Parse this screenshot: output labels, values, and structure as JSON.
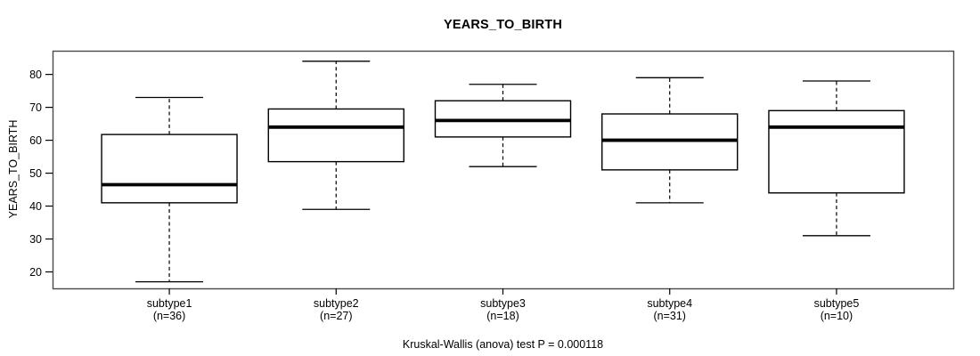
{
  "figure": {
    "background": "#ffffff",
    "line_color": "#000000",
    "frame_color": "#4a4a4a"
  },
  "chart_data": {
    "type": "boxplot",
    "title": "YEARS_TO_BIRTH",
    "ylabel": "YEARS_TO_BIRTH",
    "xlabel": "",
    "caption": "Kruskal-Wallis (anova) test P = 0.000118",
    "ylim": [
      15,
      87.2
    ],
    "yticks": [
      20,
      30,
      40,
      50,
      60,
      70,
      80
    ],
    "grid": false,
    "legend_position": "none",
    "categories": [
      "subtype1",
      "subtype2",
      "subtype3",
      "subtype4",
      "subtype5"
    ],
    "category_sublabels": [
      "(n=36)",
      "(n=27)",
      "(n=18)",
      "(n=31)",
      "(n=10)"
    ],
    "series": [
      {
        "name": "subtype1",
        "n": 36,
        "whisker_low": 17,
        "q1": 41,
        "median": 46.5,
        "q3": 61.75,
        "whisker_high": 73
      },
      {
        "name": "subtype2",
        "n": 27,
        "whisker_low": 39,
        "q1": 53.5,
        "median": 64,
        "q3": 69.5,
        "whisker_high": 84
      },
      {
        "name": "subtype3",
        "n": 18,
        "whisker_low": 52,
        "q1": 61,
        "median": 66,
        "q3": 72,
        "whisker_high": 77
      },
      {
        "name": "subtype4",
        "n": 31,
        "whisker_low": 41,
        "q1": 51,
        "median": 60,
        "q3": 68,
        "whisker_high": 79
      },
      {
        "name": "subtype5",
        "n": 10,
        "whisker_low": 31,
        "q1": 44,
        "median": 64,
        "q3": 69,
        "whisker_high": 78
      }
    ]
  }
}
